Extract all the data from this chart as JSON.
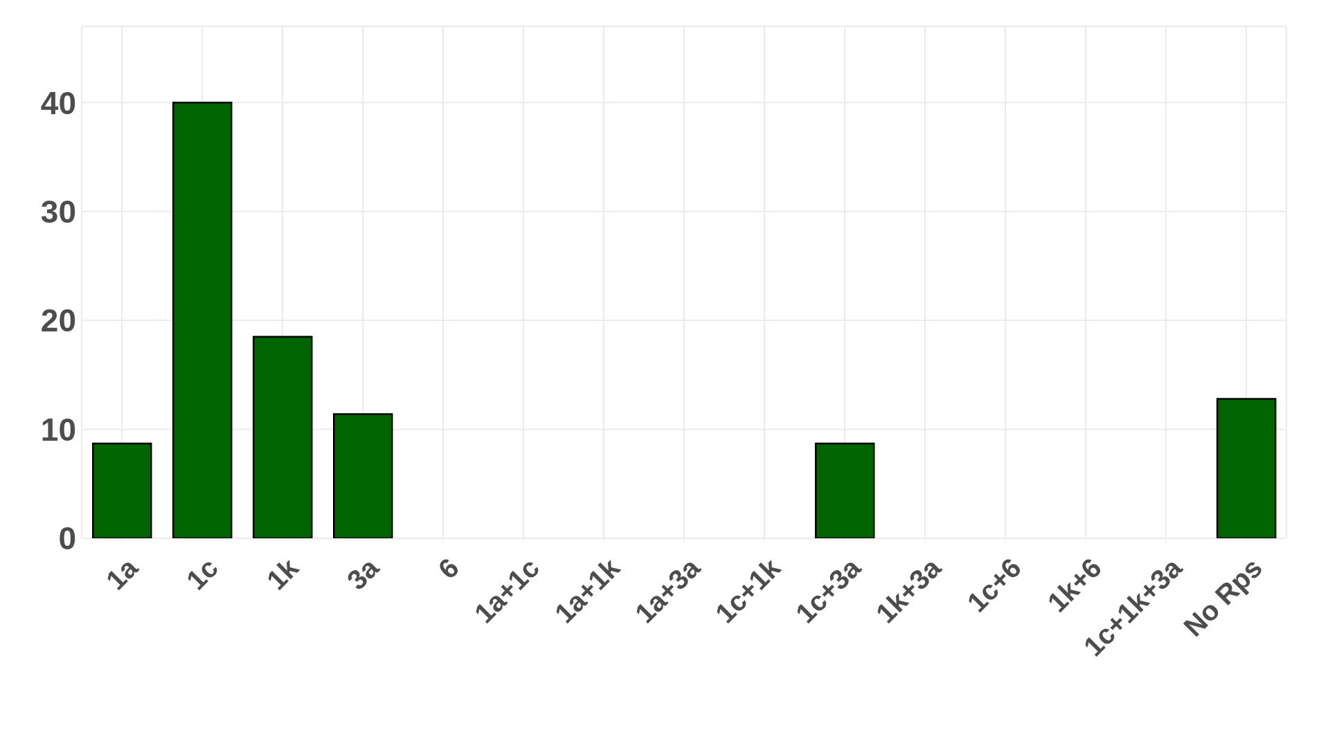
{
  "chart_data": {
    "type": "bar",
    "categories": [
      "1a",
      "1c",
      "1k",
      "3a",
      "6",
      "1a+1c",
      "1a+1k",
      "1a+3a",
      "1c+1k",
      "1c+3a",
      "1k+3a",
      "1c+6",
      "1k+6",
      "1c+1k+3a",
      "No Rps"
    ],
    "values": [
      8.7,
      40,
      18.5,
      11.4,
      0,
      0,
      0,
      0,
      0,
      8.7,
      0,
      0,
      0,
      0,
      12.8
    ],
    "color": "#006400",
    "ylim": [
      0,
      47
    ],
    "yticks": [
      0,
      10,
      20,
      30,
      40
    ],
    "grid": true,
    "legend": false
  }
}
